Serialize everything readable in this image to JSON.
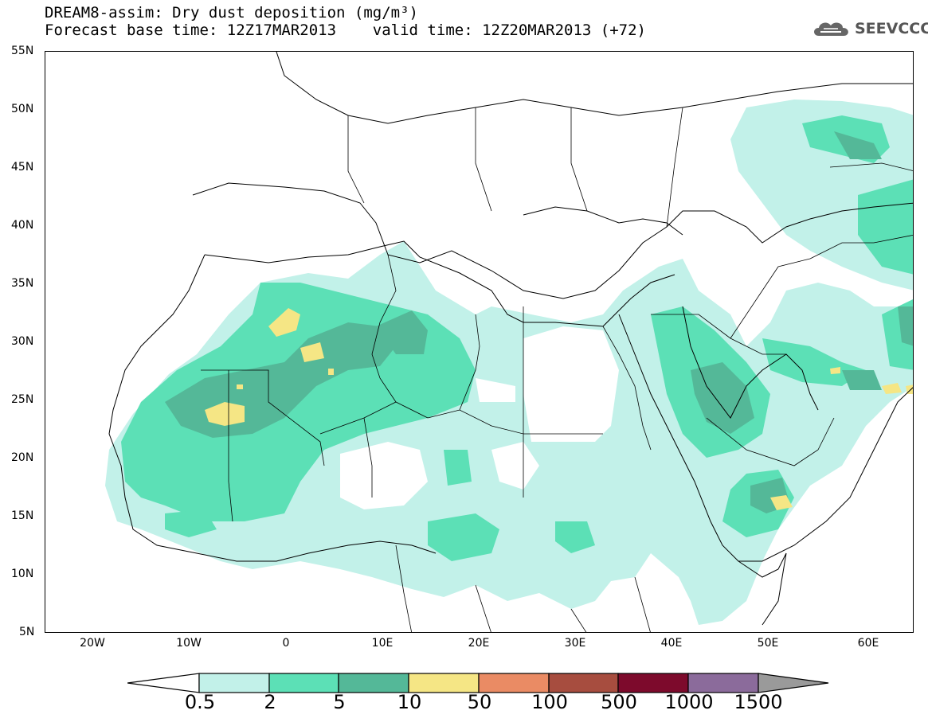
{
  "title_line1": "DREAM8-assim: Dry dust deposition (mg/m³)",
  "title_line2": "Forecast base time: 12Z17MAR2013    valid time: 12Z20MAR2013 (+72)",
  "logo_text": "SEEVCCC",
  "lat_labels": [
    "55N",
    "50N",
    "45N",
    "40N",
    "35N",
    "30N",
    "25N",
    "20N",
    "15N",
    "10N",
    "5N"
  ],
  "lon_labels": [
    "20W",
    "10W",
    "0",
    "10E",
    "20E",
    "30E",
    "40E",
    "50E",
    "60E"
  ],
  "colorbar": {
    "labels": [
      "0.5",
      "2",
      "5",
      "10",
      "50",
      "100",
      "500",
      "1000",
      "1500"
    ],
    "colors": [
      "#c2f1e9",
      "#5ce0b6",
      "#54b898",
      "#f5e685",
      "#ea8b64",
      "#a74d3f",
      "#7d0a2c",
      "#8b6b9b"
    ],
    "lower_arrow_color": "#ffffff",
    "upper_arrow_color": "#9a9a9a"
  },
  "map_extent": {
    "lon_min": -25,
    "lon_max": 65,
    "lat_min": 5,
    "lat_max": 55
  }
}
